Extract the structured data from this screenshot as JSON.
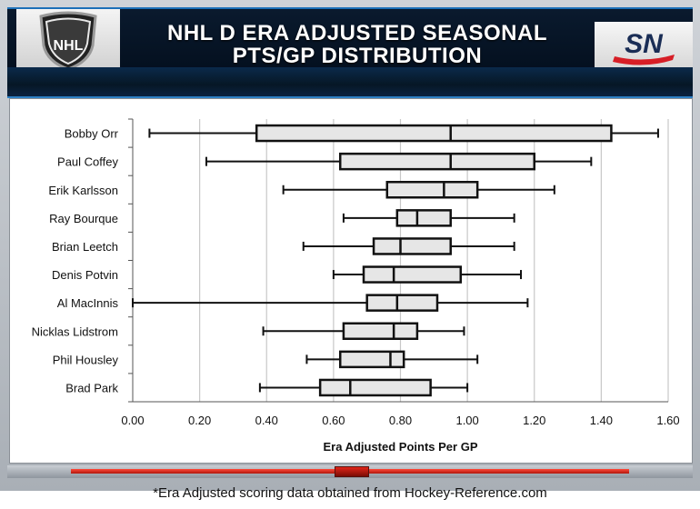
{
  "header": {
    "title_line1": "NHL D ERA ADJUSTED SEASONAL",
    "title_line2": "PTS/GP DISTRIBUTION",
    "logo_left": "NHL",
    "logo_right": "SN"
  },
  "footnote": "*Era Adjusted scoring data obtained from Hockey-Reference.com",
  "chart_data": {
    "type": "boxplot",
    "orientation": "horizontal",
    "xlabel": "Era Adjusted Points Per GP",
    "xlim": [
      0,
      1.6
    ],
    "xticks": [
      "0.00",
      "0.20",
      "0.40",
      "0.60",
      "0.80",
      "1.00",
      "1.20",
      "1.40",
      "1.60"
    ],
    "xtick_values": [
      0,
      0.2,
      0.4,
      0.6,
      0.8,
      1.0,
      1.2,
      1.4,
      1.6
    ],
    "grid": true,
    "categories": [
      "Bobby Orr",
      "Paul Coffey",
      "Erik Karlsson",
      "Ray Bourque",
      "Brian Leetch",
      "Denis Potvin",
      "Al MacInnis",
      "Nicklas Lidstrom",
      "Phil Housley",
      "Brad Park"
    ],
    "boxes": [
      {
        "min": 0.05,
        "q1": 0.37,
        "median": 0.95,
        "q3": 1.43,
        "max": 1.57
      },
      {
        "min": 0.22,
        "q1": 0.62,
        "median": 0.95,
        "q3": 1.2,
        "max": 1.37
      },
      {
        "min": 0.45,
        "q1": 0.76,
        "median": 0.93,
        "q3": 1.03,
        "max": 1.26
      },
      {
        "min": 0.63,
        "q1": 0.79,
        "median": 0.85,
        "q3": 0.95,
        "max": 1.14
      },
      {
        "min": 0.51,
        "q1": 0.72,
        "median": 0.8,
        "q3": 0.95,
        "max": 1.14
      },
      {
        "min": 0.6,
        "q1": 0.69,
        "median": 0.78,
        "q3": 0.98,
        "max": 1.16
      },
      {
        "min": 0.0,
        "q1": 0.7,
        "median": 0.79,
        "q3": 0.91,
        "max": 1.18
      },
      {
        "min": 0.39,
        "q1": 0.63,
        "median": 0.78,
        "q3": 0.85,
        "max": 0.99
      },
      {
        "min": 0.52,
        "q1": 0.62,
        "median": 0.77,
        "q3": 0.81,
        "max": 1.03
      },
      {
        "min": 0.38,
        "q1": 0.56,
        "median": 0.65,
        "q3": 0.89,
        "max": 1.0
      }
    ],
    "colors": {
      "box_fill": "#e6e6e6",
      "stroke": "#111111",
      "grid": "#c8c8c8"
    }
  }
}
